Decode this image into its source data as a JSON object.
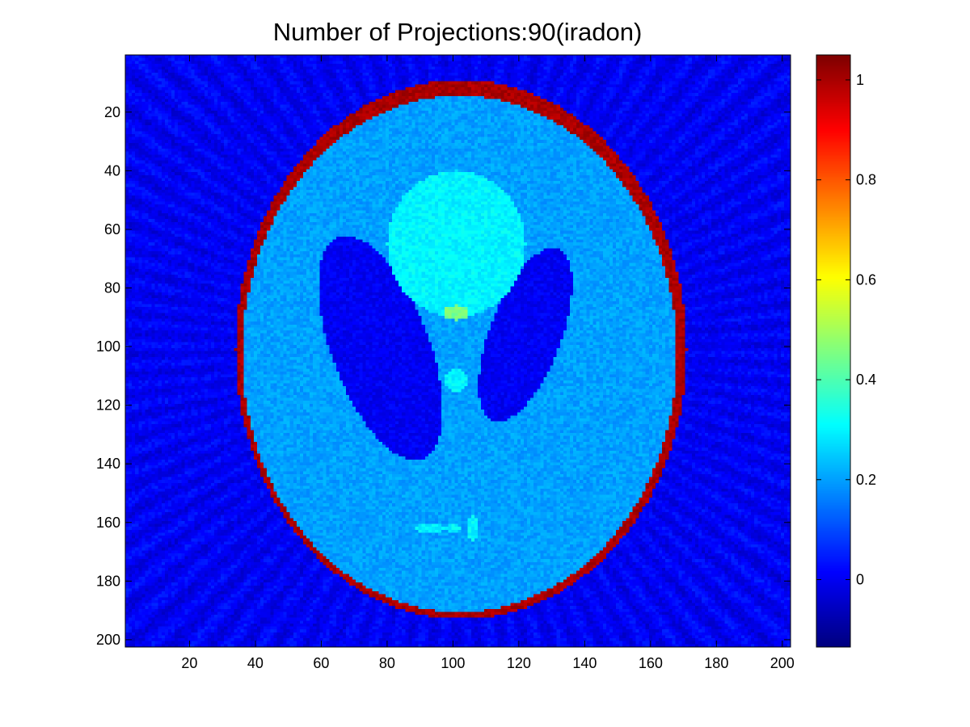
{
  "chart_data": {
    "type": "heatmap",
    "title": "Number of Projections:90(iradon)",
    "xlabel": "",
    "ylabel": "",
    "xlim": [
      0.5,
      202.5
    ],
    "ylim": [
      0.5,
      202.5
    ],
    "y_reversed": true,
    "x_ticks": [
      20,
      40,
      60,
      80,
      100,
      120,
      140,
      160,
      180,
      200
    ],
    "y_ticks": [
      20,
      40,
      60,
      80,
      100,
      120,
      140,
      160,
      180,
      200
    ],
    "colormap": "jet",
    "grid": false,
    "colorbar": {
      "range": [
        -0.135,
        1.05
      ],
      "ticks": [
        0,
        0.2,
        0.4,
        0.6,
        0.8,
        1
      ],
      "tick_labels": [
        "0",
        "0.2",
        "0.4",
        "0.6",
        "0.8",
        "1"
      ]
    },
    "image": {
      "description_values": "Shepp-Logan phantom reconstruction",
      "background_value": 0.0,
      "ellipses": [
        {
          "label": "skull",
          "x0": 102.5,
          "y0": 101,
          "a": 68.5,
          "b": 92,
          "angle_deg": 0,
          "value": 1.0
        },
        {
          "label": "brain",
          "x0": 102,
          "y0": 102.5,
          "a": 66,
          "b": 88,
          "angle_deg": 0,
          "value": 0.2
        },
        {
          "label": "left ventricle",
          "x0": 78,
          "y0": 100.5,
          "a": 15,
          "b": 40,
          "angle_deg": -18,
          "value": 0.0
        },
        {
          "label": "right ventricle",
          "x0": 122,
          "y0": 96,
          "a": 11,
          "b": 31,
          "angle_deg": 18,
          "value": 0.0
        },
        {
          "label": "upper ellipse",
          "x0": 101,
          "y0": 65,
          "a": 21,
          "b": 25,
          "angle_deg": 0,
          "value": 0.3
        },
        {
          "label": "small spot center",
          "x0": 101,
          "y0": 88.5,
          "a": 4,
          "b": 2.5,
          "angle_deg": 0,
          "value": 0.45
        },
        {
          "label": "small spot lower",
          "x0": 101,
          "y0": 111.5,
          "a": 3.5,
          "b": 4,
          "angle_deg": 0,
          "value": 0.3
        },
        {
          "label": "bottom spot left",
          "x0": 93,
          "y0": 162,
          "a": 4.5,
          "b": 1.6,
          "angle_deg": 0,
          "value": 0.3
        },
        {
          "label": "bottom spot mid",
          "x0": 100,
          "y0": 162,
          "a": 2,
          "b": 1.6,
          "angle_deg": 0,
          "value": 0.3
        },
        {
          "label": "bottom spot right",
          "x0": 106,
          "y0": 162,
          "a": 1.6,
          "b": 4,
          "angle_deg": 0,
          "value": 0.3
        }
      ]
    }
  }
}
